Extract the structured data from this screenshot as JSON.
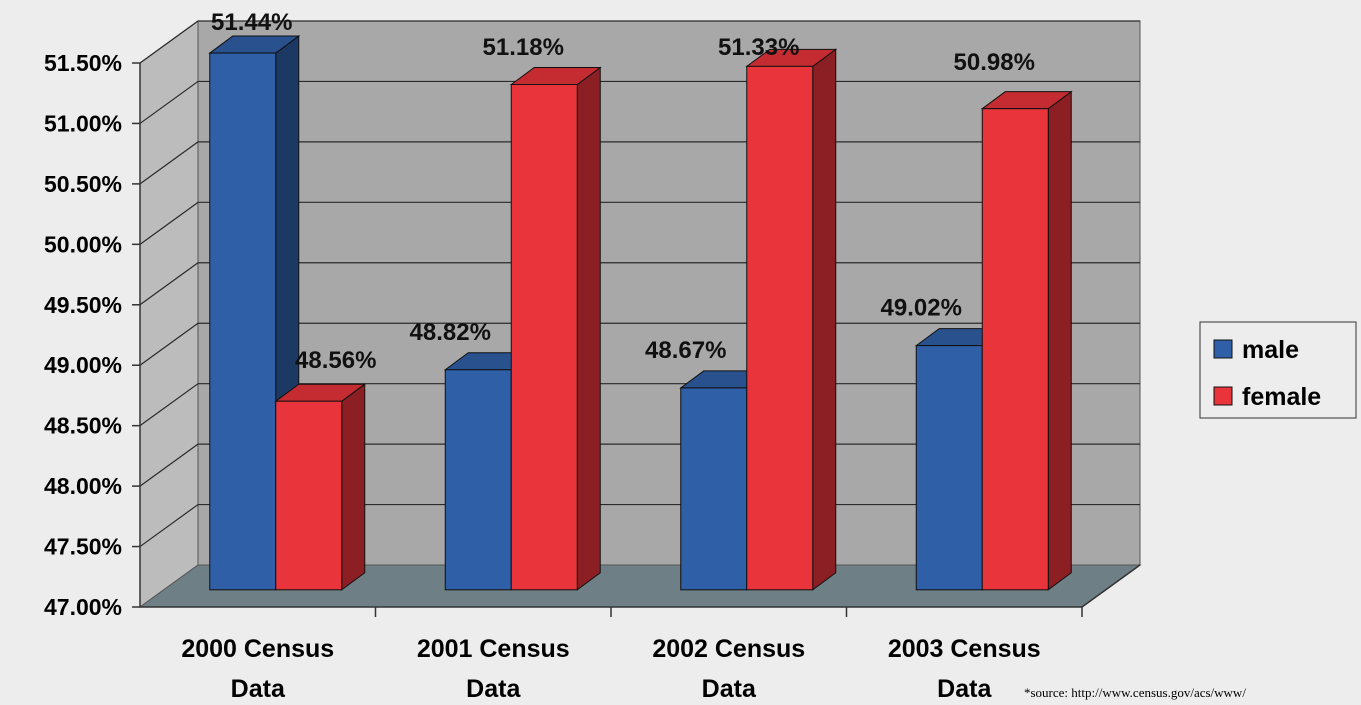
{
  "chart_data": {
    "type": "bar",
    "categories": [
      [
        "2000 Census",
        "Data"
      ],
      [
        "2001 Census",
        "Data"
      ],
      [
        "2002 Census",
        "Data"
      ],
      [
        "2003 Census",
        "Data"
      ]
    ],
    "series": [
      {
        "name": "male",
        "values": [
          51.44,
          48.82,
          48.67,
          49.02
        ],
        "labels": [
          "51.44%",
          "48.82%",
          "48.67%",
          "49.02%"
        ]
      },
      {
        "name": "female",
        "values": [
          48.56,
          51.18,
          51.33,
          50.98
        ],
        "labels": [
          "48.56%",
          "51.18%",
          "51.33%",
          "50.98%"
        ]
      }
    ],
    "ylim": [
      47.0,
      51.5
    ],
    "y_ticks": [
      "47.00%",
      "47.50%",
      "48.00%",
      "48.50%",
      "49.00%",
      "49.50%",
      "50.00%",
      "50.50%",
      "51.00%",
      "51.50%"
    ],
    "grid": true,
    "legend": "right",
    "three_d": true
  },
  "colors": {
    "male": "#2f5fa6",
    "female": "#e8343a",
    "back_wall": "#a8a8a8",
    "floor": "#6e7f86"
  },
  "source_note": "*source: http://www.census.gov/acs/www/"
}
